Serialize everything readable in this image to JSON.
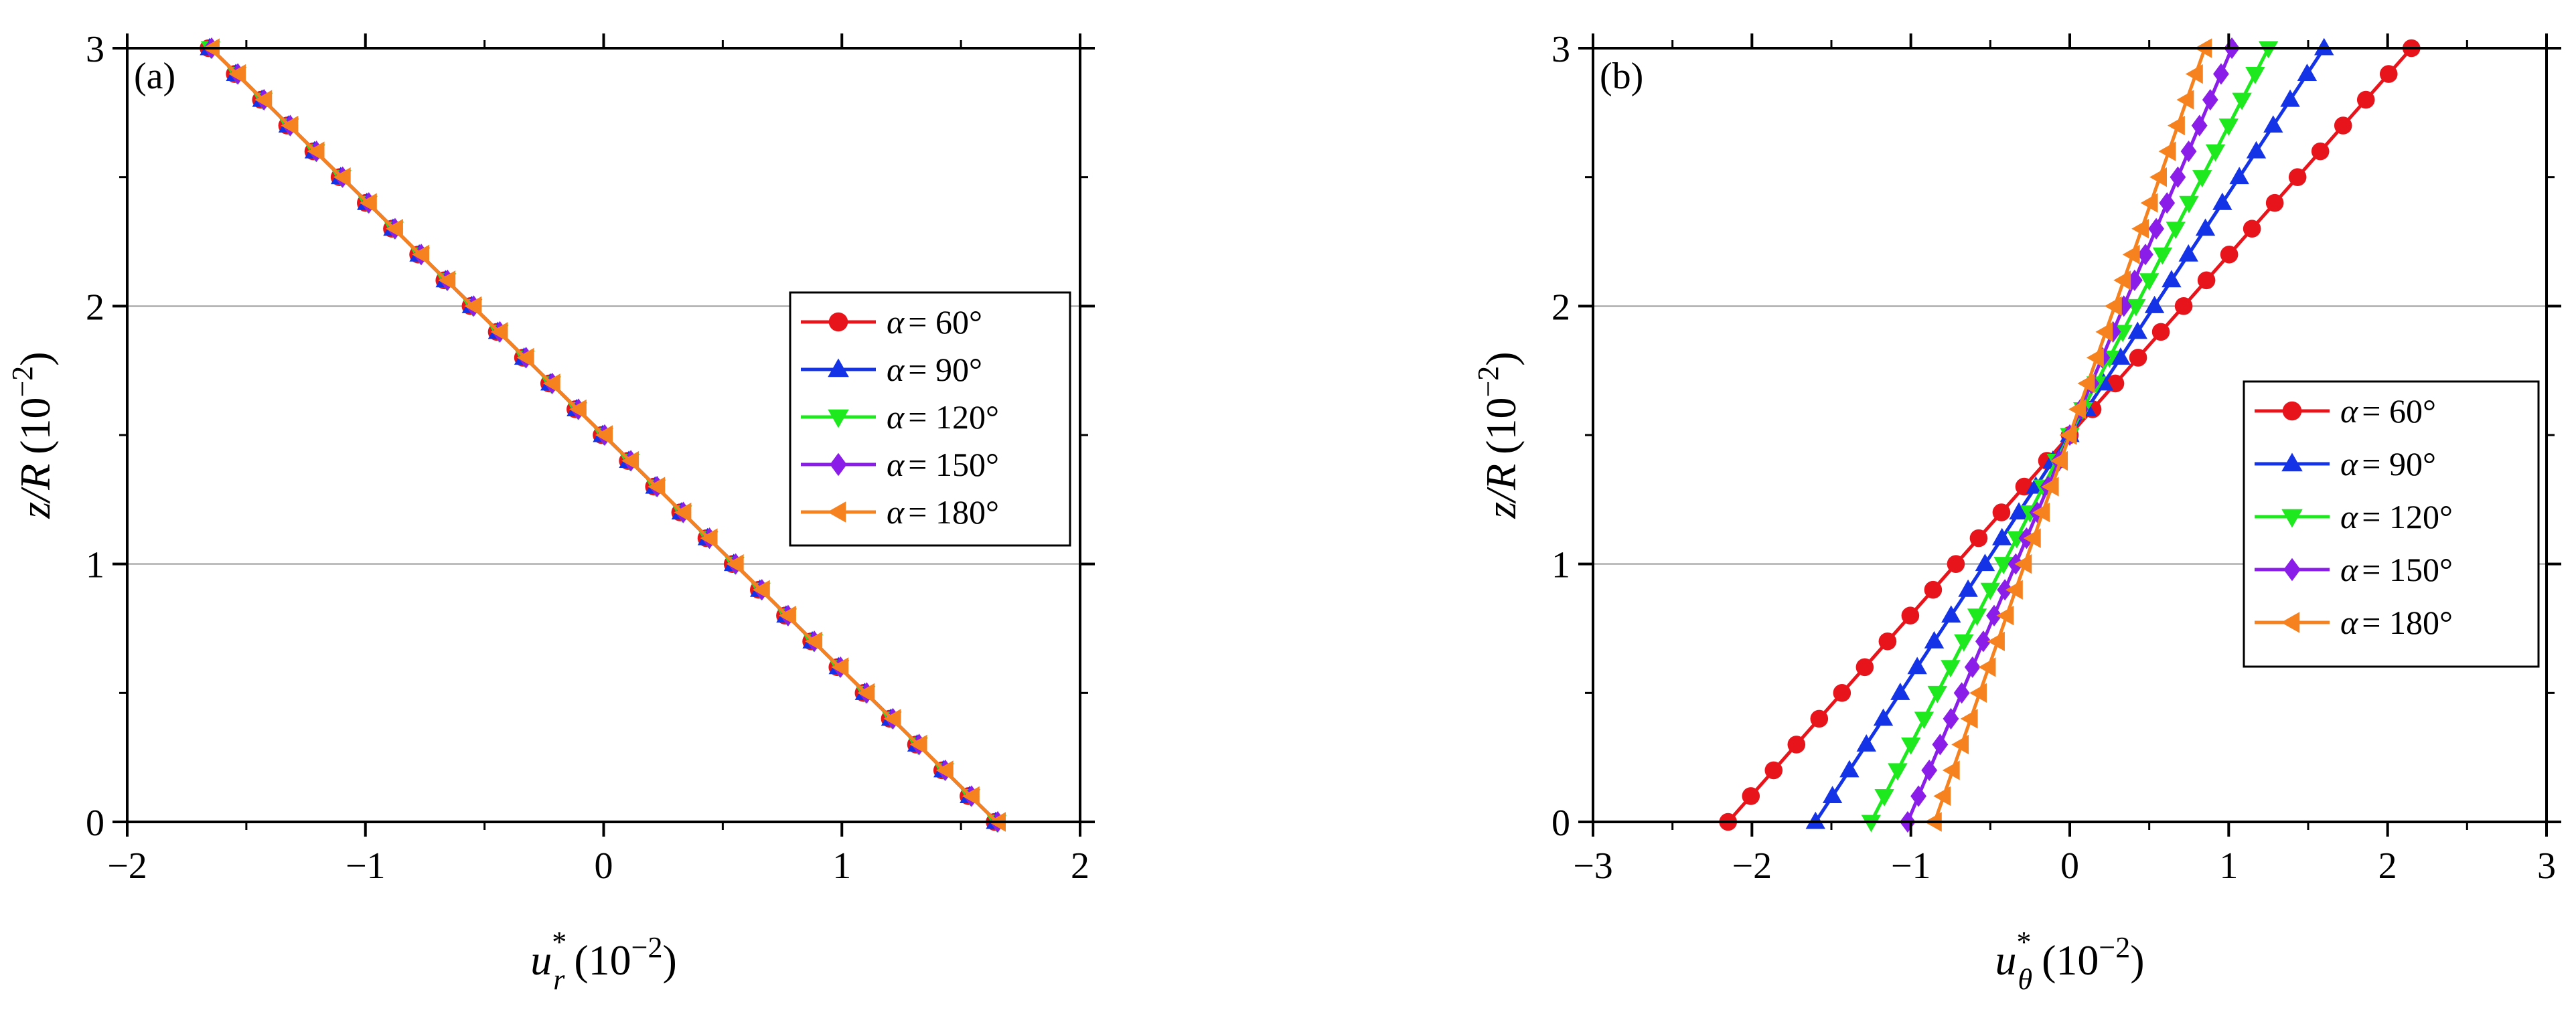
{
  "chart_data": [
    {
      "panel": "(a)",
      "type": "line",
      "xlabel": {
        "symbol": "u",
        "superscript": "*",
        "subscript": "r",
        "scale": "(10",
        "scale_exp": "−2",
        "scale_close": ")"
      },
      "ylabel": {
        "symbol": "z/R",
        "scale": "(10",
        "scale_exp": "−2",
        "scale_close": ")"
      },
      "xlim": [
        -2,
        2
      ],
      "ylim": [
        0,
        3
      ],
      "xticks": [
        -2,
        -1,
        0,
        1,
        2
      ],
      "xtick_labels": [
        "−2",
        "−1",
        "0",
        "1",
        "2"
      ],
      "yticks": [
        0,
        1,
        2,
        3
      ],
      "ytick_labels": [
        "0",
        "1",
        "2",
        "3"
      ],
      "grid": "horizontal",
      "legend_position": "center-right",
      "series": [
        {
          "name": "α = 60°",
          "greek": "α",
          "value": "= 60°",
          "color": "#e8141b",
          "marker": "circle",
          "line": [
            [
              1.65,
              0
            ],
            [
              -1.65,
              3
            ]
          ]
        },
        {
          "name": "α = 90°",
          "greek": "α",
          "value": "= 90°",
          "color": "#1433e6",
          "marker": "triangle-up",
          "line": [
            [
              1.65,
              0
            ],
            [
              -1.65,
              3
            ]
          ]
        },
        {
          "name": "α = 120°",
          "greek": "α",
          "value": "= 120°",
          "color": "#1ee81e",
          "marker": "triangle-down",
          "line": [
            [
              1.65,
              0
            ],
            [
              -1.65,
              3
            ]
          ]
        },
        {
          "name": "α = 150°",
          "greek": "α",
          "value": "= 150°",
          "color": "#8a1ee8",
          "marker": "diamond",
          "line": [
            [
              1.65,
              0
            ],
            [
              -1.65,
              3
            ]
          ]
        },
        {
          "name": "α = 180°",
          "greek": "α",
          "value": "= 180°",
          "color": "#f5821f",
          "marker": "triangle-left",
          "line": [
            [
              1.65,
              0
            ],
            [
              -1.65,
              3
            ]
          ]
        }
      ]
    },
    {
      "panel": "(b)",
      "type": "line",
      "xlabel": {
        "symbol": "u",
        "superscript": "*",
        "subscript": "θ",
        "scale": "(10",
        "scale_exp": "−2",
        "scale_close": ")"
      },
      "ylabel": {
        "symbol": "z/R",
        "scale": "(10",
        "scale_exp": "−2",
        "scale_close": ")"
      },
      "xlim": [
        -3,
        3
      ],
      "ylim": [
        0,
        3
      ],
      "xticks": [
        -3,
        -2,
        -1,
        0,
        1,
        2,
        3
      ],
      "xtick_labels": [
        "−3",
        "−2",
        "−1",
        "0",
        "1",
        "2",
        "3"
      ],
      "yticks": [
        0,
        1,
        2,
        3
      ],
      "ytick_labels": [
        "0",
        "1",
        "2",
        "3"
      ],
      "grid": "horizontal",
      "legend_position": "center-right",
      "series": [
        {
          "name": "α = 60°",
          "greek": "α",
          "value": "= 60°",
          "color": "#e8141b",
          "marker": "circle",
          "line": [
            [
              -2.15,
              0
            ],
            [
              2.15,
              3
            ]
          ]
        },
        {
          "name": "α = 90°",
          "greek": "α",
          "value": "= 90°",
          "color": "#1433e6",
          "marker": "triangle-up",
          "line": [
            [
              -1.6,
              0
            ],
            [
              1.6,
              3
            ]
          ]
        },
        {
          "name": "α = 120°",
          "greek": "α",
          "value": "= 120°",
          "color": "#1ee81e",
          "marker": "triangle-down",
          "line": [
            [
              -1.25,
              0
            ],
            [
              1.25,
              3
            ]
          ]
        },
        {
          "name": "α = 150°",
          "greek": "α",
          "value": "= 150°",
          "color": "#8a1ee8",
          "marker": "diamond",
          "line": [
            [
              -1.02,
              0
            ],
            [
              1.02,
              3
            ]
          ]
        },
        {
          "name": "α = 180°",
          "greek": "α",
          "value": "= 180°",
          "color": "#f5821f",
          "marker": "triangle-left",
          "line": [
            [
              -0.85,
              0
            ],
            [
              0.85,
              3
            ]
          ]
        }
      ]
    }
  ]
}
